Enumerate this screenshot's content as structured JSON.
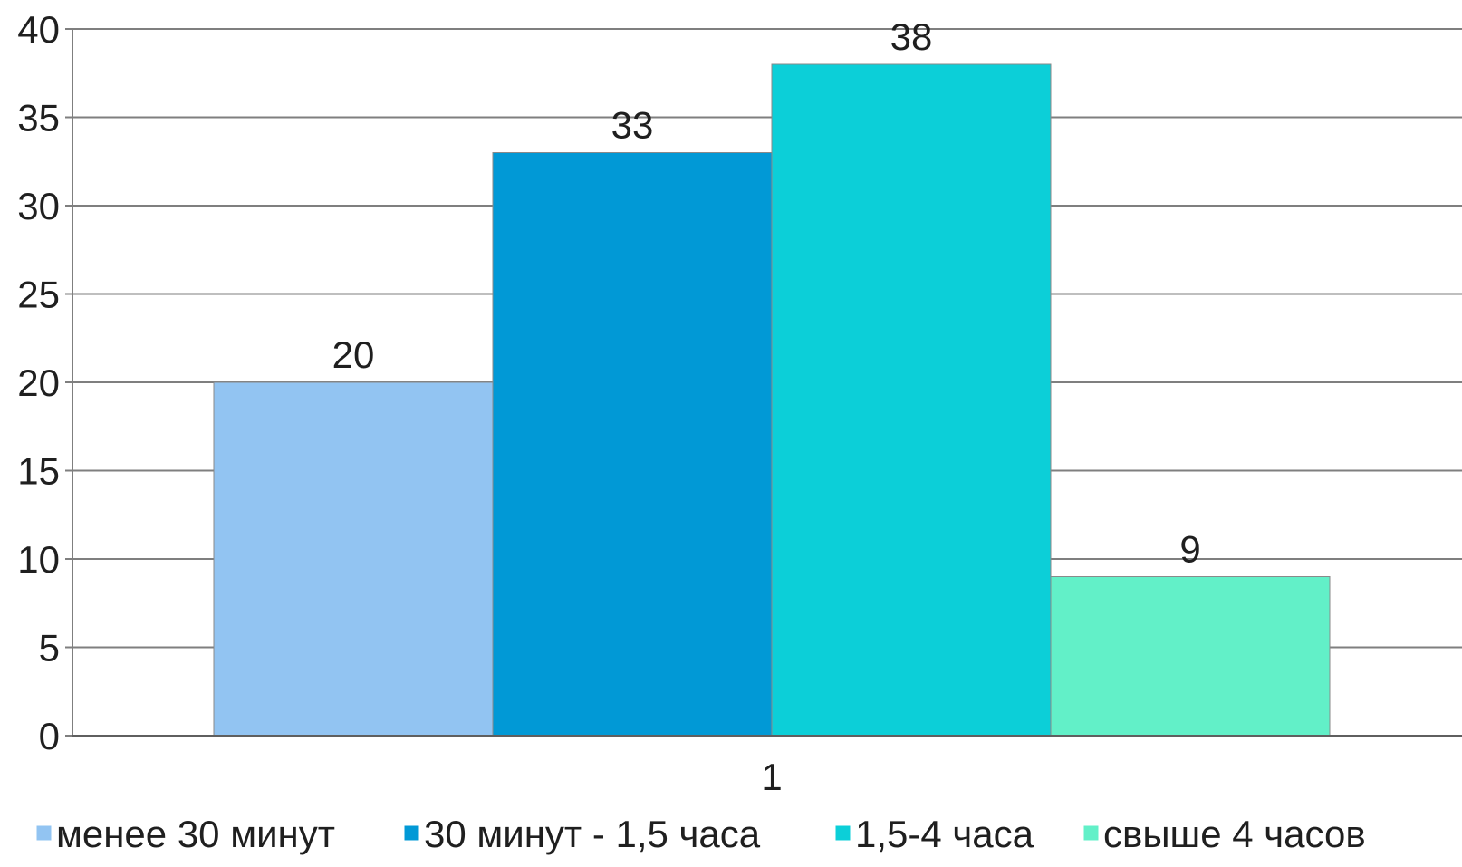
{
  "chart_data": {
    "type": "bar",
    "categories": [
      "1"
    ],
    "series": [
      {
        "name": "менее 30 минут",
        "values": [
          20
        ],
        "color": "#92C4F2"
      },
      {
        "name": "30 минут - 1,5 часа",
        "values": [
          33
        ],
        "color": "#0199D6"
      },
      {
        "name": "1,5-4 часа",
        "values": [
          38
        ],
        "color": "#0CCFD8"
      },
      {
        "name": "свыше 4 часов",
        "values": [
          9
        ],
        "color": "#62F0C8"
      }
    ],
    "ylim": [
      0,
      40
    ],
    "yticks": [
      "0",
      "5",
      "10",
      "15",
      "20",
      "25",
      "30",
      "35",
      "40"
    ],
    "grid": true,
    "legend_position": "bottom",
    "title": "",
    "xlabel": "",
    "ylabel": ""
  }
}
